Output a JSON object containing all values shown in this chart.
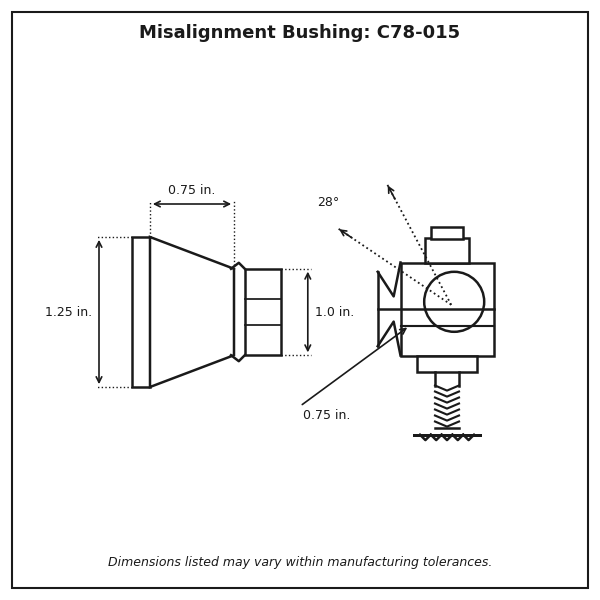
{
  "title": "Misalignment Bushing: C78-015",
  "footer": "Dimensions listed may vary within manufacturing tolerances.",
  "background_color": "#ffffff",
  "line_color": "#1a1a1a",
  "title_fontsize": 13,
  "footer_fontsize": 9,
  "dim_fontsize": 9,
  "dim_075_label": "0.75 in.",
  "dim_10_label": "1.0 in.",
  "dim_125_label": "1.25 in.",
  "dim_075b_label": "0.75 in.",
  "angle_label": "28°"
}
